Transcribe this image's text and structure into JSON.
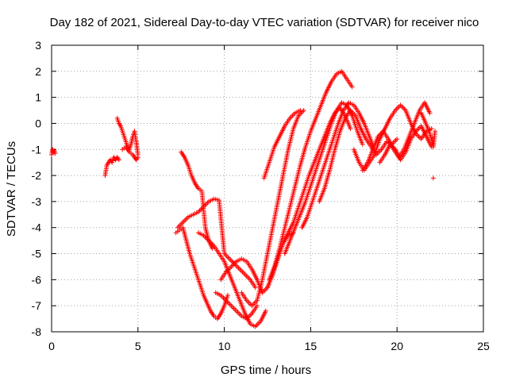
{
  "chart_data": {
    "type": "scatter",
    "title": "Day 182 of 2021, Sidereal Day-to-day VTEC variation (SDTVAR) for receiver nico",
    "xlabel": "GPS time / hours",
    "ylabel": "SDTVAR / TECUs",
    "xlim": [
      0,
      25
    ],
    "ylim": [
      -8,
      3
    ],
    "xticks": [
      0,
      5,
      10,
      15,
      20,
      25
    ],
    "yticks": [
      -8,
      -7,
      -6,
      -5,
      -4,
      -3,
      -2,
      -1,
      0,
      1,
      2,
      3
    ],
    "grid": true,
    "marker": "+",
    "color": "#ff0000",
    "series": [
      {
        "x": [
          0.0,
          0.05,
          0.1,
          0.15,
          0.2
        ],
        "y": [
          -1.2,
          -1.0,
          -1.1,
          -1.05,
          -1.15
        ]
      },
      {
        "x": [
          3.1,
          3.2,
          3.3,
          3.4,
          3.5,
          3.6,
          3.7,
          3.8,
          3.9
        ],
        "y": [
          -2.0,
          -1.6,
          -1.5,
          -1.4,
          -1.5,
          -1.3,
          -1.4,
          -1.3,
          -1.4
        ]
      },
      {
        "x": [
          3.8,
          3.9,
          4.0,
          4.1,
          4.2,
          4.3,
          4.4,
          4.5,
          4.6,
          4.7,
          4.8,
          4.9,
          5.0
        ],
        "y": [
          0.2,
          0.0,
          -0.1,
          -0.3,
          -0.5,
          -0.7,
          -0.9,
          -1.0,
          -0.8,
          -0.5,
          -0.3,
          -0.7,
          -1.2
        ]
      },
      {
        "x": [
          4.1,
          4.3,
          4.5,
          4.7,
          4.9,
          5.0
        ],
        "y": [
          -1.0,
          -0.9,
          -1.1,
          -1.2,
          -1.4,
          -1.3
        ]
      },
      {
        "x": [
          7.5,
          7.7,
          7.9,
          8.1,
          8.3,
          8.5,
          8.7,
          8.9,
          9.1,
          9.3
        ],
        "y": [
          -1.1,
          -1.3,
          -1.6,
          -2.0,
          -2.3,
          -2.5,
          -2.6,
          -4.0,
          -4.5,
          -4.8
        ]
      },
      {
        "x": [
          7.2,
          7.4,
          7.6,
          7.8,
          8.0,
          8.2,
          8.4,
          8.6,
          8.8,
          9.0,
          9.2,
          9.4,
          9.6,
          9.8,
          10.0,
          10.2
        ],
        "y": [
          -4.2,
          -4.1,
          -4.0,
          -4.5,
          -5.0,
          -5.4,
          -5.8,
          -6.2,
          -6.6,
          -6.9,
          -7.2,
          -7.4,
          -7.5,
          -7.3,
          -7.0,
          -6.6
        ]
      },
      {
        "x": [
          7.3,
          7.6,
          7.9,
          8.2,
          8.5,
          8.8,
          9.1,
          9.4,
          9.7,
          10.0,
          10.3,
          10.6,
          10.9,
          11.2,
          11.5,
          11.8
        ],
        "y": [
          -4.0,
          -3.8,
          -3.6,
          -3.5,
          -3.4,
          -3.2,
          -3.0,
          -2.9,
          -2.95,
          -5.0,
          -5.2,
          -5.4,
          -5.6,
          -5.8,
          -6.0,
          -6.3
        ]
      },
      {
        "x": [
          8.5,
          8.8,
          9.1,
          9.4,
          9.7,
          10.0,
          10.3,
          10.6,
          10.9,
          11.2,
          11.5,
          11.8,
          12.1,
          12.4
        ],
        "y": [
          -4.2,
          -4.3,
          -4.5,
          -4.7,
          -5.0,
          -5.3,
          -5.8,
          -6.3,
          -6.8,
          -7.3,
          -7.7,
          -7.8,
          -7.6,
          -7.2
        ]
      },
      {
        "x": [
          9.5,
          9.8,
          10.1,
          10.4,
          10.7,
          11.0,
          11.3,
          11.6,
          11.9
        ],
        "y": [
          -6.5,
          -6.6,
          -6.8,
          -7.0,
          -7.2,
          -7.4,
          -7.5,
          -7.3,
          -7.0
        ]
      },
      {
        "x": [
          9.8,
          10.1,
          10.4,
          10.7,
          11.0,
          11.3,
          11.6,
          11.9,
          12.2,
          12.5,
          12.8,
          13.1,
          13.4,
          13.7,
          14.0
        ],
        "y": [
          -6.0,
          -5.7,
          -5.5,
          -5.3,
          -5.2,
          -5.3,
          -5.6,
          -6.0,
          -6.5,
          -6.3,
          -5.8,
          -5.2,
          -4.6,
          -4.3,
          -4.2
        ]
      },
      {
        "x": [
          11.0,
          11.3,
          11.6,
          11.9,
          12.2,
          12.5,
          12.8,
          13.1,
          13.4,
          13.7,
          14.0,
          14.3,
          14.6
        ],
        "y": [
          -6.5,
          -6.8,
          -7.0,
          -6.8,
          -6.0,
          -5.0,
          -4.0,
          -3.0,
          -2.0,
          -1.0,
          -0.2,
          0.3,
          0.5
        ]
      },
      {
        "x": [
          12.6,
          12.9,
          13.2,
          13.5,
          13.8,
          14.1,
          14.4,
          14.7,
          15.0,
          15.3,
          15.6,
          15.9,
          16.2,
          16.5,
          16.8,
          17.1,
          17.4
        ],
        "y": [
          -6.0,
          -5.5,
          -4.8,
          -4.0,
          -3.2,
          -2.4,
          -1.6,
          -0.9,
          -0.3,
          0.2,
          0.7,
          1.2,
          1.6,
          1.9,
          2.0,
          1.7,
          1.4
        ]
      },
      {
        "x": [
          12.3,
          12.6,
          12.9,
          13.2,
          13.5,
          13.8,
          14.1,
          14.4
        ],
        "y": [
          -2.1,
          -1.5,
          -0.9,
          -0.5,
          -0.1,
          0.2,
          0.4,
          0.5
        ]
      },
      {
        "x": [
          12.5,
          12.8,
          13.1,
          13.4,
          13.7,
          14.0,
          14.3,
          14.6,
          14.9,
          15.2,
          15.5,
          15.8,
          16.1,
          16.4,
          16.7,
          17.0,
          17.3
        ],
        "y": [
          -6.3,
          -5.8,
          -5.2,
          -4.6,
          -4.2,
          -3.8,
          -3.2,
          -2.6,
          -2.0,
          -1.5,
          -1.0,
          -0.5,
          0.0,
          0.4,
          0.6,
          0.3,
          -0.2
        ]
      },
      {
        "x": [
          13.5,
          13.8,
          14.1,
          14.4,
          14.7,
          15.0,
          15.3,
          15.6,
          15.9,
          16.2,
          16.5,
          16.8,
          17.1,
          17.4,
          17.7,
          18.0
        ],
        "y": [
          -5.0,
          -4.5,
          -4.0,
          -3.5,
          -3.0,
          -2.4,
          -1.8,
          -1.2,
          -0.6,
          0.0,
          0.5,
          0.8,
          0.7,
          0.3,
          -0.3,
          -0.8
        ]
      },
      {
        "x": [
          14.5,
          14.8,
          15.1,
          15.4,
          15.7,
          16.0,
          16.3,
          16.6,
          16.9,
          17.2,
          17.5,
          17.8,
          18.1,
          18.4,
          18.7
        ],
        "y": [
          -4.0,
          -3.6,
          -3.0,
          -2.4,
          -1.8,
          -1.2,
          -0.6,
          0.0,
          0.5,
          0.8,
          0.7,
          0.4,
          0.0,
          -0.5,
          -1.0
        ]
      },
      {
        "x": [
          15.5,
          15.8,
          16.1,
          16.4,
          16.7,
          17.0,
          17.3,
          17.6,
          17.9,
          18.2,
          18.5,
          18.8,
          19.1,
          19.4,
          19.7,
          20.0
        ],
        "y": [
          -3.0,
          -2.5,
          -1.8,
          -1.0,
          -0.3,
          0.2,
          0.5,
          0.3,
          -0.2,
          -0.6,
          -0.9,
          -1.2,
          -1.0,
          -0.7,
          -0.8,
          -0.6
        ]
      },
      {
        "x": [
          17.5,
          17.8,
          18.1,
          18.4,
          18.7,
          19.0,
          19.3,
          19.6,
          19.9,
          20.2,
          20.5,
          20.8,
          21.1,
          21.4,
          21.7,
          22.0
        ],
        "y": [
          -1.0,
          -1.5,
          -1.8,
          -1.5,
          -1.2,
          -0.6,
          -0.2,
          0.2,
          0.5,
          0.7,
          0.5,
          0.0,
          -0.4,
          -0.6,
          -0.3,
          -0.2
        ]
      },
      {
        "x": [
          18.0,
          18.3,
          18.6,
          18.9,
          19.2,
          19.5,
          19.8,
          20.1,
          20.4,
          20.7,
          21.0,
          21.3,
          21.6,
          21.9
        ],
        "y": [
          -1.8,
          -1.5,
          -1.0,
          -0.5,
          -0.3,
          -0.6,
          -1.0,
          -1.3,
          -1.0,
          -0.5,
          0.0,
          0.5,
          0.8,
          0.4
        ]
      },
      {
        "x": [
          19.0,
          19.3,
          19.6,
          19.9,
          20.2,
          20.5,
          20.8,
          21.1,
          21.4,
          21.7,
          22.0
        ],
        "y": [
          -1.5,
          -1.2,
          -0.8,
          -1.0,
          -1.4,
          -1.1,
          -0.6,
          -0.3,
          -0.1,
          -0.5,
          -0.9
        ]
      },
      {
        "x": [
          21.4,
          21.6,
          21.8,
          22.0,
          22.1,
          22.2
        ],
        "y": [
          0.4,
          0.1,
          -0.2,
          -0.6,
          -0.9,
          -0.3
        ]
      },
      {
        "x": [
          22.1
        ],
        "y": [
          -2.1
        ]
      }
    ]
  }
}
